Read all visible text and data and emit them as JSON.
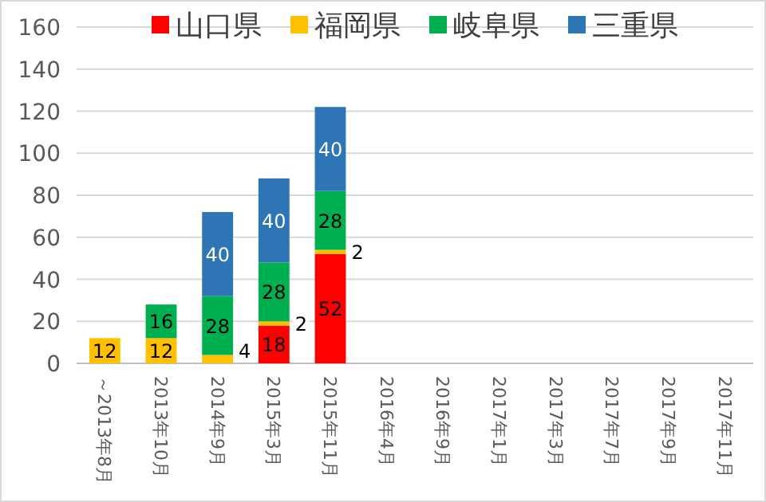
{
  "chart_data": {
    "type": "bar",
    "stacked": true,
    "data_labels": true,
    "legend": "top",
    "grid": "y",
    "categories": [
      "～2013年8月",
      "2013年10月",
      "2014年9月",
      "2015年3月",
      "2015年11月",
      "2016年4月",
      "2016年9月",
      "2017年1月",
      "2017年3月",
      "2017年7月",
      "2017年9月",
      "2017年11月"
    ],
    "ylim": [
      0,
      160
    ],
    "yticks": [
      0,
      20,
      40,
      60,
      80,
      100,
      120,
      140,
      160
    ],
    "series": [
      {
        "name": "山口県",
        "color": "#ff0000",
        "values": [
          null,
          null,
          null,
          18,
          52,
          null,
          null,
          null,
          null,
          null,
          null,
          null
        ]
      },
      {
        "name": "福岡県",
        "color": "#ffc000",
        "values": [
          12,
          12,
          4,
          2,
          2,
          null,
          null,
          null,
          null,
          null,
          null,
          null
        ]
      },
      {
        "name": "岐阜県",
        "color": "#00b050",
        "values": [
          null,
          16,
          28,
          28,
          28,
          null,
          null,
          null,
          null,
          null,
          null,
          null
        ]
      },
      {
        "name": "三重県",
        "color": "#2e75b6",
        "values": [
          null,
          null,
          40,
          40,
          40,
          null,
          null,
          null,
          null,
          null,
          null,
          null
        ]
      }
    ]
  }
}
